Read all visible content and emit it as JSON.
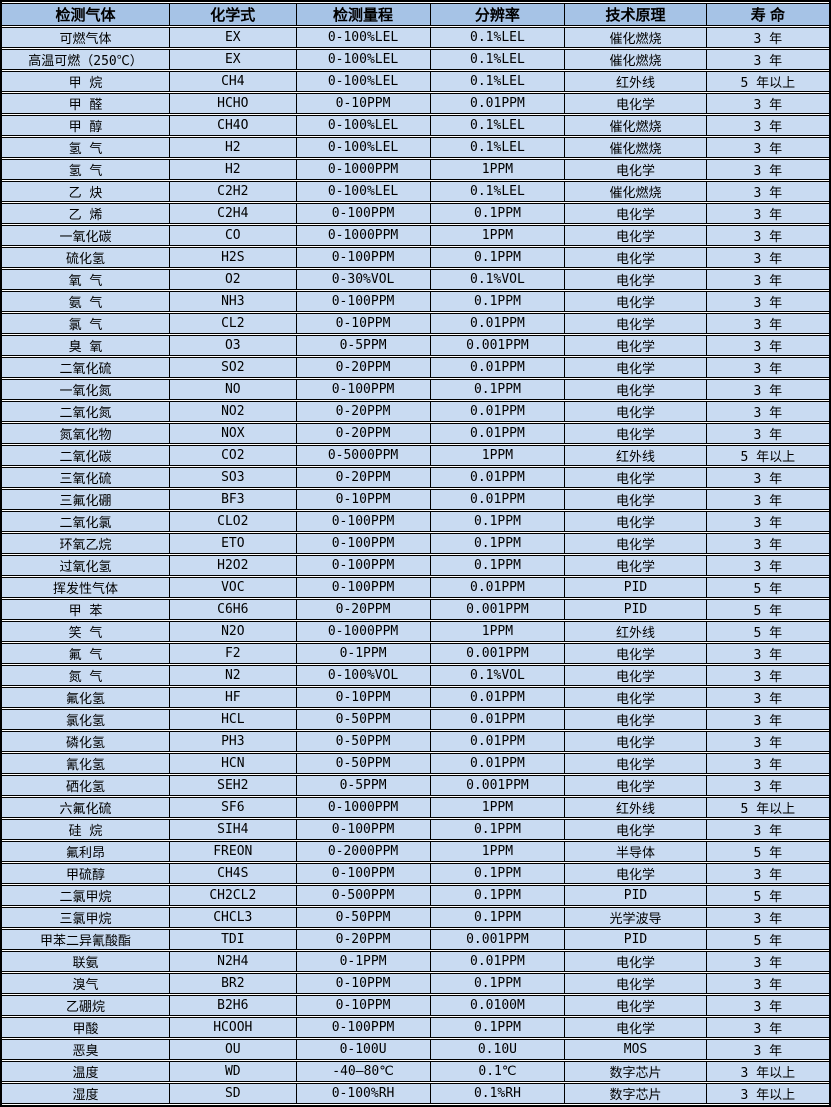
{
  "colors": {
    "header_bg": "#a6c3e6",
    "row_bg": "#c9dbf2",
    "border": "#000000",
    "text": "#000000"
  },
  "table": {
    "columns": [
      "gas",
      "formula",
      "range",
      "resolution",
      "principle",
      "lifespan"
    ],
    "headers": [
      {
        "key": "gas",
        "label": "检测气体"
      },
      {
        "key": "formula",
        "label": "化学式"
      },
      {
        "key": "range",
        "label": "检测量程"
      },
      {
        "key": "resolution",
        "label": "分辨率"
      },
      {
        "key": "principle",
        "label": "技术原理"
      },
      {
        "key": "lifespan",
        "label": "寿 命"
      }
    ],
    "rows": [
      {
        "gas": "可燃气体",
        "formula": "EX",
        "range": "0-100%LEL",
        "resolution": "0.1%LEL",
        "principle": "催化燃烧",
        "lifespan": "3 年"
      },
      {
        "gas": "高温可燃（250℃）",
        "formula": "EX",
        "range": "0-100%LEL",
        "resolution": "0.1%LEL",
        "principle": "催化燃烧",
        "lifespan": "3 年"
      },
      {
        "gas": "甲 烷",
        "formula": "CH4",
        "range": "0-100%LEL",
        "resolution": "0.1%LEL",
        "principle": "红外线",
        "lifespan": "5 年以上"
      },
      {
        "gas": "甲 醛",
        "formula": "HCHO",
        "range": "0-10PPM",
        "resolution": "0.01PPM",
        "principle": "电化学",
        "lifespan": "3 年"
      },
      {
        "gas": "甲 醇",
        "formula": "CH4O",
        "range": "0-100%LEL",
        "resolution": "0.1%LEL",
        "principle": "催化燃烧",
        "lifespan": "3 年"
      },
      {
        "gas": "氢 气",
        "formula": "H2",
        "range": "0-100%LEL",
        "resolution": "0.1%LEL",
        "principle": "催化燃烧",
        "lifespan": "3 年"
      },
      {
        "gas": "氢 气",
        "formula": "H2",
        "range": "0-1000PPM",
        "resolution": "1PPM",
        "principle": "电化学",
        "lifespan": "3 年"
      },
      {
        "gas": "乙 炔",
        "formula": "C2H2",
        "range": "0-100%LEL",
        "resolution": "0.1%LEL",
        "principle": "催化燃烧",
        "lifespan": "3 年"
      },
      {
        "gas": "乙 烯",
        "formula": "C2H4",
        "range": "0-100PPM",
        "resolution": "0.1PPM",
        "principle": "电化学",
        "lifespan": "3 年"
      },
      {
        "gas": "一氧化碳",
        "formula": "CO",
        "range": "0-1000PPM",
        "resolution": "1PPM",
        "principle": "电化学",
        "lifespan": "3 年"
      },
      {
        "gas": "硫化氢",
        "formula": "H2S",
        "range": "0-100PPM",
        "resolution": "0.1PPM",
        "principle": "电化学",
        "lifespan": "3 年"
      },
      {
        "gas": "氧 气",
        "formula": "O2",
        "range": "0-30%VOL",
        "resolution": "0.1%VOL",
        "principle": "电化学",
        "lifespan": "3 年"
      },
      {
        "gas": "氨 气",
        "formula": "NH3",
        "range": "0-100PPM",
        "resolution": "0.1PPM",
        "principle": "电化学",
        "lifespan": "3 年"
      },
      {
        "gas": "氯 气",
        "formula": "CL2",
        "range": "0-10PPM",
        "resolution": "0.01PPM",
        "principle": "电化学",
        "lifespan": "3 年"
      },
      {
        "gas": "臭 氧",
        "formula": "O3",
        "range": "0-5PPM",
        "resolution": "0.001PPM",
        "principle": "电化学",
        "lifespan": "3 年"
      },
      {
        "gas": "二氧化硫",
        "formula": "SO2",
        "range": "0-20PPM",
        "resolution": "0.01PPM",
        "principle": "电化学",
        "lifespan": "3 年"
      },
      {
        "gas": "一氧化氮",
        "formula": "NO",
        "range": "0-100PPM",
        "resolution": "0.1PPM",
        "principle": "电化学",
        "lifespan": "3 年"
      },
      {
        "gas": "二氧化氮",
        "formula": "NO2",
        "range": "0-20PPM",
        "resolution": "0.01PPM",
        "principle": "电化学",
        "lifespan": "3 年"
      },
      {
        "gas": "氮氧化物",
        "formula": "NOX",
        "range": "0-20PPM",
        "resolution": "0.01PPM",
        "principle": "电化学",
        "lifespan": "3 年"
      },
      {
        "gas": "二氧化碳",
        "formula": "CO2",
        "range": "0-5000PPM",
        "resolution": "1PPM",
        "principle": "红外线",
        "lifespan": "5 年以上"
      },
      {
        "gas": "三氧化硫",
        "formula": "SO3",
        "range": "0-20PPM",
        "resolution": "0.01PPM",
        "principle": "电化学",
        "lifespan": "3 年"
      },
      {
        "gas": "三氟化硼",
        "formula": "BF3",
        "range": "0-10PPM",
        "resolution": "0.01PPM",
        "principle": "电化学",
        "lifespan": "3 年"
      },
      {
        "gas": "二氧化氯",
        "formula": "CLO2",
        "range": "0-100PPM",
        "resolution": "0.1PPM",
        "principle": "电化学",
        "lifespan": "3 年"
      },
      {
        "gas": "环氧乙烷",
        "formula": "ETO",
        "range": "0-100PPM",
        "resolution": "0.1PPM",
        "principle": "电化学",
        "lifespan": "3 年"
      },
      {
        "gas": "过氧化氢",
        "formula": "H2O2",
        "range": "0-100PPM",
        "resolution": "0.1PPM",
        "principle": "电化学",
        "lifespan": "3 年"
      },
      {
        "gas": "挥发性气体",
        "formula": "VOC",
        "range": "0-100PPM",
        "resolution": "0.01PPM",
        "principle": "PID",
        "lifespan": "5 年"
      },
      {
        "gas": "甲 苯",
        "formula": "C6H6",
        "range": "0-20PPM",
        "resolution": "0.001PPM",
        "principle": "PID",
        "lifespan": "5 年"
      },
      {
        "gas": "笑 气",
        "formula": "N2O",
        "range": "0-1000PPM",
        "resolution": "1PPM",
        "principle": "红外线",
        "lifespan": "5 年"
      },
      {
        "gas": "氟 气",
        "formula": "F2",
        "range": "0-1PPM",
        "resolution": "0.001PPM",
        "principle": "电化学",
        "lifespan": "3 年"
      },
      {
        "gas": "氮 气",
        "formula": "N2",
        "range": "0-100%VOL",
        "resolution": "0.1%VOL",
        "principle": "电化学",
        "lifespan": "3 年"
      },
      {
        "gas": "氟化氢",
        "formula": "HF",
        "range": "0-10PPM",
        "resolution": "0.01PPM",
        "principle": "电化学",
        "lifespan": "3 年"
      },
      {
        "gas": "氯化氢",
        "formula": "HCL",
        "range": "0-50PPM",
        "resolution": "0.01PPM",
        "principle": "电化学",
        "lifespan": "3 年"
      },
      {
        "gas": "磷化氢",
        "formula": "PH3",
        "range": "0-50PPM",
        "resolution": "0.01PPM",
        "principle": "电化学",
        "lifespan": "3 年"
      },
      {
        "gas": "氰化氢",
        "formula": "HCN",
        "range": "0-50PPM",
        "resolution": "0.01PPM",
        "principle": "电化学",
        "lifespan": "3 年"
      },
      {
        "gas": "硒化氢",
        "formula": "SEH2",
        "range": "0-5PPM",
        "resolution": "0.001PPM",
        "principle": "电化学",
        "lifespan": "3 年"
      },
      {
        "gas": "六氟化硫",
        "formula": "SF6",
        "range": "0-1000PPM",
        "resolution": "1PPM",
        "principle": "红外线",
        "lifespan": "5 年以上"
      },
      {
        "gas": "硅 烷",
        "formula": "SIH4",
        "range": "0-100PPM",
        "resolution": "0.1PPM",
        "principle": "电化学",
        "lifespan": "3 年"
      },
      {
        "gas": "氟利昂",
        "formula": "FREON",
        "range": "0-2000PPM",
        "resolution": "1PPM",
        "principle": "半导体",
        "lifespan": "5 年"
      },
      {
        "gas": "甲硫醇",
        "formula": "CH4S",
        "range": "0-100PPM",
        "resolution": "0.1PPM",
        "principle": "电化学",
        "lifespan": "3 年"
      },
      {
        "gas": "二氯甲烷",
        "formula": "CH2CL2",
        "range": "0-500PPM",
        "resolution": "0.1PPM",
        "principle": "PID",
        "lifespan": "5 年"
      },
      {
        "gas": "三氯甲烷",
        "formula": "CHCL3",
        "range": "0-50PPM",
        "resolution": "0.1PPM",
        "principle": "光学波导",
        "lifespan": "3 年"
      },
      {
        "gas": "甲苯二异氰酸酯",
        "formula": "TDI",
        "range": "0-20PPM",
        "resolution": "0.001PPM",
        "principle": "PID",
        "lifespan": "5 年"
      },
      {
        "gas": "联氨",
        "formula": "N2H4",
        "range": "0-1PPM",
        "resolution": "0.01PPM",
        "principle": "电化学",
        "lifespan": "3 年"
      },
      {
        "gas": "溴气",
        "formula": "BR2",
        "range": "0-10PPM",
        "resolution": "0.1PPM",
        "principle": "电化学",
        "lifespan": "3 年"
      },
      {
        "gas": "乙硼烷",
        "formula": "B2H6",
        "range": "0-10PPM",
        "resolution": "0.0100M",
        "principle": "电化学",
        "lifespan": "3 年"
      },
      {
        "gas": "甲酸",
        "formula": "HCOOH",
        "range": "0-100PPM",
        "resolution": "0.1PPM",
        "principle": "电化学",
        "lifespan": "3 年"
      },
      {
        "gas": "恶臭",
        "formula": "OU",
        "range": "0-100U",
        "resolution": "0.10U",
        "principle": "MOS",
        "lifespan": "3 年"
      },
      {
        "gas": "温度",
        "formula": "WD",
        "range": "-40—80℃",
        "resolution": "0.1℃",
        "principle": "数字芯片",
        "lifespan": "3 年以上"
      },
      {
        "gas": "湿度",
        "formula": "SD",
        "range": "0-100%RH",
        "resolution": "0.1%RH",
        "principle": "数字芯片",
        "lifespan": "3 年以上"
      }
    ]
  }
}
